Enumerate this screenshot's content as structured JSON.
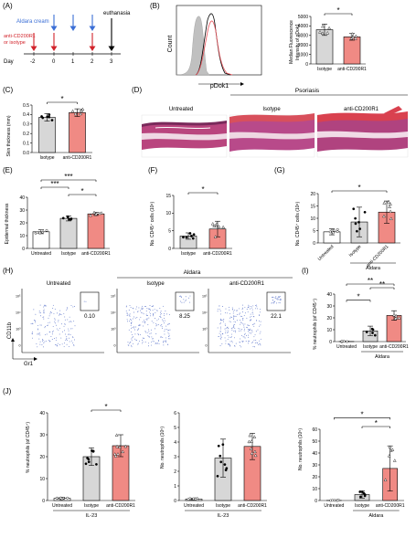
{
  "panels": {
    "A": {
      "label": "(A)",
      "aldara": "Aldara cream",
      "treat_line1": "anti-CD200R1",
      "treat_line2": "or isotype",
      "euthanasia": "euthanasia",
      "day_label": "Day",
      "days": [
        "-2",
        "0",
        "1",
        "2",
        "3"
      ]
    },
    "B": {
      "label": "(B)",
      "ylabel": "Count",
      "xlabel": "pDok1",
      "bar_ylabel_1": "Median Fluorescence",
      "bar_ylabel_2": "Intensity of pDok1",
      "sig": "*",
      "chart_data": {
        "type": "bar",
        "categories": [
          "Isotype",
          "anti-CD200R1"
        ],
        "values": [
          3600,
          2850
        ],
        "yticks": [
          "0",
          "1000",
          "2000",
          "3000",
          "4000",
          "5000"
        ],
        "ylim": [
          0,
          5000
        ]
      }
    },
    "C": {
      "label": "(C)",
      "ylabel": "Skin thickness (mm)",
      "sig": "*",
      "chart_data": {
        "type": "bar",
        "categories": [
          "Isotype",
          "anti-CD200R1"
        ],
        "values": [
          0.37,
          0.42
        ],
        "yticks": [
          "0.0",
          "0.1",
          "0.2",
          "0.3",
          "0.4",
          "0.5"
        ],
        "ylim": [
          0,
          0.5
        ]
      }
    },
    "D": {
      "label": "(D)",
      "psoriasis": "Psoriasis",
      "titles": [
        "Untreated",
        "Isotype",
        "anti-CD200R1"
      ]
    },
    "E": {
      "label": "(E)",
      "ylabel": "Epidermal thickness",
      "sigs": [
        "***",
        "***",
        "*"
      ],
      "chart_data": {
        "type": "bar",
        "categories": [
          "Untreated",
          "Isotype",
          "anti-CD200R1"
        ],
        "values": [
          13,
          23.5,
          27
        ],
        "yticks": [
          "0",
          "10",
          "20",
          "30",
          "40"
        ],
        "ylim": [
          0,
          40
        ]
      }
    },
    "F": {
      "label": "(F)",
      "ylabel": "No. CD45⁺ cells (10⁶)",
      "sig": "*",
      "chart_data": {
        "type": "bar",
        "categories": [
          "Isotype",
          "anti-CD200R1"
        ],
        "values": [
          3.5,
          5.5
        ],
        "yticks": [
          "0",
          "5",
          "10",
          "15"
        ],
        "ylim": [
          0,
          15
        ]
      }
    },
    "G": {
      "label": "(G)",
      "ylabel": "No. CD45⁺ cells (10⁶)",
      "sig": "*",
      "group": "Aldara",
      "chart_data": {
        "type": "bar",
        "categories": [
          "Untreated",
          "Isotype",
          "anti-CD200R1"
        ],
        "values": [
          4.5,
          8.5,
          12.5
        ],
        "yticks": [
          "0",
          "5",
          "10",
          "15",
          "20"
        ],
        "ylim": [
          0,
          20
        ]
      }
    },
    "H": {
      "label": "(H)",
      "aldara": "Aldara",
      "titles": [
        "Untreated",
        "Isotype",
        "anti-CD200R1"
      ],
      "gates": [
        "0.10",
        "8.25",
        "22.1"
      ],
      "ylabel": "CD11b",
      "xlabel": "Gr1"
    },
    "I": {
      "label": "(I)",
      "ylabel": "% neutrophils (of CD45⁺)",
      "sigs": [
        "**",
        "**",
        "*"
      ],
      "group": "Aldara",
      "chart_data": {
        "type": "bar",
        "categories": [
          "Untreated",
          "Isotype",
          "anti-CD200R1"
        ],
        "values": [
          0.1,
          9,
          22
        ],
        "yticks": [
          "0",
          "10",
          "20",
          "30",
          "40"
        ],
        "ylim": [
          0,
          40
        ]
      }
    },
    "J": {
      "label": "(J)",
      "group": "IL-23",
      "left": {
        "ylabel": "% neutrophils (of CD45⁺)",
        "sig": "*",
        "chart_data": {
          "type": "bar",
          "categories": [
            "Untreated",
            "Isotype",
            "anti-CD200R1"
          ],
          "values": [
            1,
            20,
            25
          ],
          "yticks": [
            "0",
            "10",
            "20",
            "30",
            "40"
          ],
          "ylim": [
            0,
            40
          ]
        }
      },
      "mid": {
        "ylabel": "No. neutrophils (10⁵)",
        "chart_data": {
          "type": "bar",
          "categories": [
            "Untreated",
            "Isotype",
            "anti-CD200R1"
          ],
          "values": [
            0.1,
            2.9,
            3.7
          ],
          "yticks": [
            "0",
            "1",
            "2",
            "3",
            "4",
            "5",
            "6"
          ],
          "ylim": [
            0,
            6
          ]
        }
      },
      "right": {
        "ylabel": "No. neutrophils (10⁵)",
        "sigs": [
          "*",
          "*"
        ],
        "group": "Aldara",
        "chart_data": {
          "type": "bar",
          "categories": [
            "Untreated",
            "Isotype",
            "anti-CD200R1"
          ],
          "values": [
            0.1,
            5,
            27
          ],
          "yticks": [
            "0",
            "10",
            "20",
            "30",
            "40",
            "50",
            "60"
          ],
          "ylim": [
            0,
            60
          ]
        }
      }
    }
  },
  "colors": {
    "red": "#e8525a",
    "bar_red": "#f08a84",
    "bar_grey": "#d7d7d7",
    "blue": "#3b6fd6",
    "dark_red": "#d2232a",
    "flow_dot": "#5670c8"
  }
}
